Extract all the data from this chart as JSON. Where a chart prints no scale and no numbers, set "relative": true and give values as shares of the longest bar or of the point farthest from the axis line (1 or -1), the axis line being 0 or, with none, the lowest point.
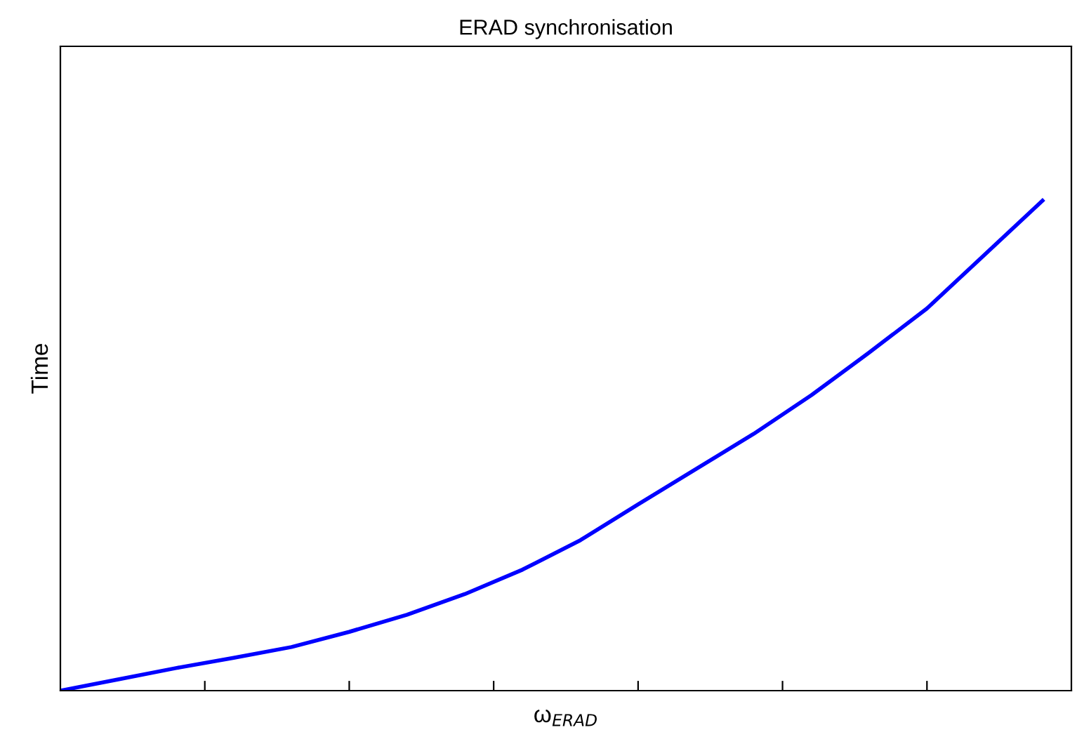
{
  "chart_data": {
    "type": "line",
    "title": "ERAD synchronisation",
    "xlabel": "ω$_{ERAD}$",
    "ylabel": "Time",
    "relative": true,
    "categories": [
      null,
      null,
      null,
      null,
      null,
      null,
      null,
      null,
      null,
      null,
      null,
      null,
      null,
      null,
      null,
      null,
      null,
      null
    ],
    "series": [
      {
        "color": "#0000ff",
        "values": [
          0,
          0.023,
          0.046,
          0.067,
          0.089,
          0.12,
          0.155,
          0.197,
          0.247,
          0.307,
          0.38,
          0.452,
          0.524,
          0.603,
          0.69,
          0.78,
          0.89,
          1
        ]
      }
    ],
    "grid": false,
    "legend": false,
    "marker": "none",
    "line_style": "solid"
  }
}
